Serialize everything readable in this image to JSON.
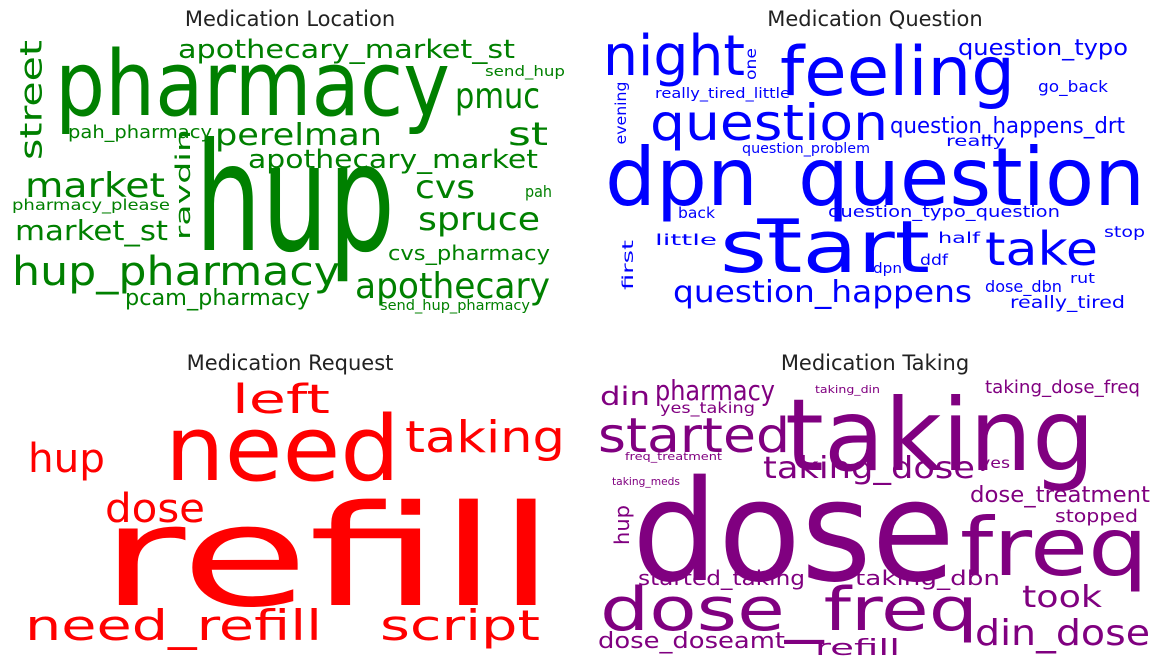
{
  "panels": [
    {
      "title": "Medication Location",
      "color": "#008000",
      "words": [
        "pharmacy",
        "hup",
        "apothecary_market_st",
        "send_hup",
        "pmuc",
        "street",
        "pah_pharmacy",
        "perelman",
        "st",
        "apothecary_market",
        "ravdin",
        "market",
        "cvs",
        "pah",
        "pharmacy_please",
        "spruce",
        "market_st",
        "cvs_pharmacy",
        "hup_pharmacy",
        "apothecary",
        "pcam_pharmacy",
        "send_hup_pharmacy"
      ]
    },
    {
      "title": "Medication Question",
      "color": "#0000ff",
      "words": [
        "night",
        "one",
        "feeling",
        "question_typo",
        "go_back",
        "really_tired_little",
        "evening",
        "question",
        "question_happens_drt",
        "really",
        "question_problem",
        "dpn_question",
        "back",
        "question_typo_question",
        "little",
        "start",
        "half",
        "take",
        "stop",
        "first",
        "ddf",
        "dpn",
        "rut",
        "dose_dbn",
        "question_happens",
        "really_tired"
      ]
    },
    {
      "title": "Medication Request",
      "color": "#ff0000",
      "words": [
        "left",
        "need",
        "taking",
        "hup",
        "dose",
        "refill",
        "need_refill",
        "script"
      ]
    },
    {
      "title": "Medication Taking",
      "color": "#800080",
      "words": [
        "pharmacy",
        "din",
        "taking_din",
        "taking_dose_freq",
        "yes_taking",
        "taking",
        "started",
        "freq_treatment",
        "taking_dose",
        "yes",
        "taking_meds",
        "dose_treatment",
        "hup",
        "dose",
        "stopped",
        "freq",
        "started_taking",
        "taking_dbn",
        "dose_freq",
        "took",
        "din_dose",
        "dose_doseamt",
        "refill"
      ]
    }
  ]
}
